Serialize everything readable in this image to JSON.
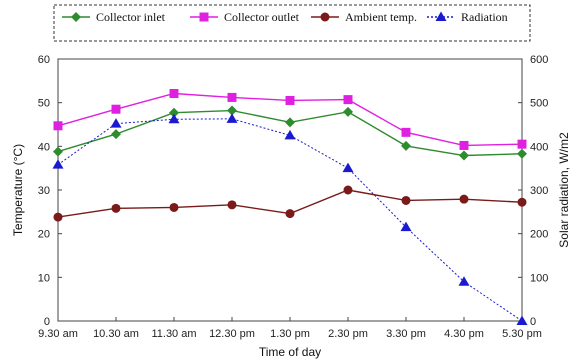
{
  "chart_data": {
    "type": "line",
    "x": [
      "9.30 am",
      "10.30 am",
      "11.30 am",
      "12.30 pm",
      "1.30 pm",
      "2.30 pm",
      "3.30 pm",
      "4.30 pm",
      "5.30 pm"
    ],
    "xlabel": "Time of day",
    "ylabel": "Temperature (°C)",
    "ylabel_right": "Solar radiation, W/m2",
    "ylim": [
      0,
      60
    ],
    "ylim_right": [
      0,
      600
    ],
    "yticks": [
      "0",
      "10",
      "20",
      "30",
      "40",
      "50",
      "60"
    ],
    "yticks_right": [
      "0",
      "100",
      "200",
      "300",
      "400",
      "500",
      "600"
    ],
    "grid": false,
    "legend_position": "top",
    "series": [
      {
        "name": "Collector inlet",
        "axis": "left",
        "color": "#2e8b2e",
        "marker": "diamond",
        "values": [
          38.8,
          42.8,
          47.7,
          48.2,
          45.5,
          47.9,
          40.1,
          37.9,
          38.3
        ]
      },
      {
        "name": "Collector outlet",
        "axis": "left",
        "color": "#e020e0",
        "marker": "square",
        "values": [
          44.7,
          48.5,
          52.1,
          51.2,
          50.5,
          50.7,
          43.2,
          40.2,
          40.5
        ]
      },
      {
        "name": "Ambient temp.",
        "axis": "left",
        "color": "#7a1a1a",
        "marker": "circle",
        "values": [
          23.8,
          25.8,
          26.0,
          26.6,
          24.6,
          30.0,
          27.6,
          27.9,
          27.2
        ]
      },
      {
        "name": "Radiation",
        "axis": "right",
        "color": "#1a1ad0",
        "marker": "triangle",
        "dashed": true,
        "values": [
          358,
          452,
          462,
          463,
          425,
          350,
          215,
          90,
          0
        ]
      }
    ]
  }
}
